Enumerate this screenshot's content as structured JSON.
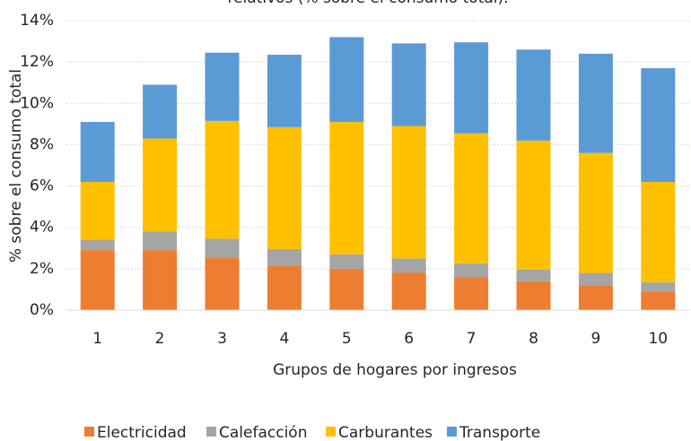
{
  "chart_data": {
    "type": "stacked-bar",
    "title": "relativos (% sobre el consumo total).",
    "x_label": "Grupos de hogares por ingresos",
    "y_label": "% sobre el consumo total",
    "categories": [
      "1",
      "2",
      "3",
      "4",
      "5",
      "6",
      "7",
      "8",
      "9",
      "10"
    ],
    "series": [
      {
        "name": "Electricidad",
        "color": "#ed7d31",
        "values": [
          2.9,
          2.9,
          2.55,
          2.15,
          2.0,
          1.8,
          1.6,
          1.4,
          1.2,
          0.9
        ]
      },
      {
        "name": "Calefacción",
        "color": "#a5a5a5",
        "values": [
          0.5,
          0.9,
          0.9,
          0.8,
          0.7,
          0.7,
          0.65,
          0.55,
          0.6,
          0.45
        ]
      },
      {
        "name": "Carburantes",
        "color": "#ffc000",
        "values": [
          2.8,
          4.5,
          5.7,
          5.9,
          6.4,
          6.4,
          6.3,
          6.25,
          5.8,
          4.85
        ]
      },
      {
        "name": "Transporte",
        "color": "#5b9bd5",
        "values": [
          2.9,
          2.6,
          3.3,
          3.5,
          4.1,
          4.0,
          4.4,
          4.4,
          4.8,
          5.5
        ]
      }
    ],
    "ylim": [
      0,
      14
    ],
    "yticks": [
      {
        "value": 0,
        "label": "0%"
      },
      {
        "value": 2,
        "label": "2%"
      },
      {
        "value": 4,
        "label": "4%"
      },
      {
        "value": 6,
        "label": "6%"
      },
      {
        "value": 8,
        "label": "8%"
      },
      {
        "value": 10,
        "label": "10%"
      },
      {
        "value": 12,
        "label": "12%"
      },
      {
        "value": 14,
        "label": "14%"
      }
    ],
    "grid": true,
    "legend": "bottom"
  }
}
